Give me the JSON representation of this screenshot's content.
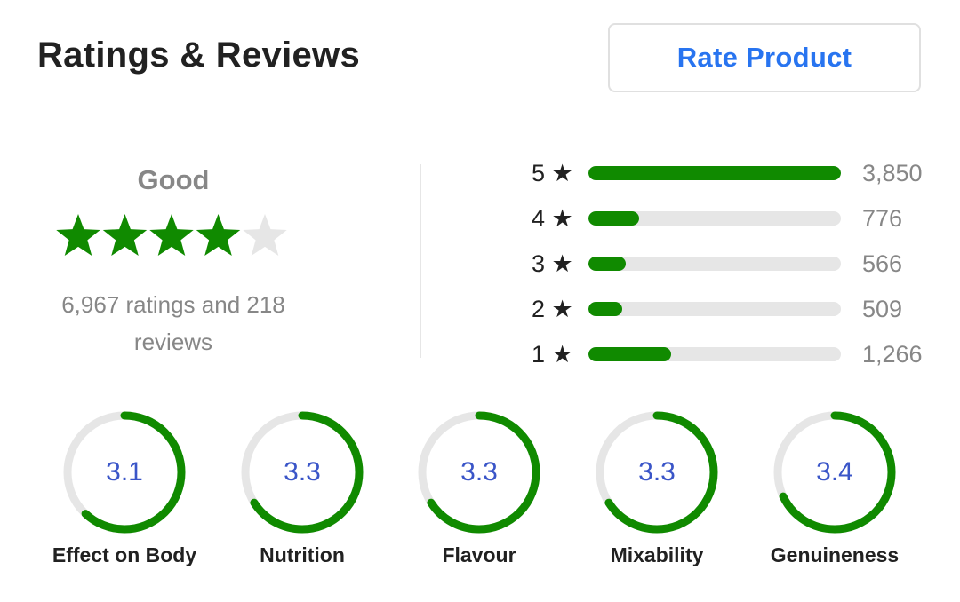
{
  "header": {
    "title": "Ratings & Reviews",
    "rate_button": "Rate Product"
  },
  "overall": {
    "label": "Good",
    "stars_filled": 4,
    "stars_total": 5,
    "summary_line1": "6,967 ratings and 218",
    "summary_line2": "reviews",
    "star_icon": "star-icon",
    "filled_color": "#108a00",
    "empty_color": "#e6e6e6"
  },
  "distribution": [
    {
      "label": "5 ★",
      "count": "3,850",
      "value": 3850
    },
    {
      "label": "4 ★",
      "count": "776",
      "value": 776
    },
    {
      "label": "3 ★",
      "count": "566",
      "value": 566
    },
    {
      "label": "2 ★",
      "count": "509",
      "value": 509
    },
    {
      "label": "1 ★",
      "count": "1,266",
      "value": 1266
    }
  ],
  "aspects": [
    {
      "name": "Effect on Body",
      "value": "3.1",
      "score": 3.1
    },
    {
      "name": "Nutrition",
      "value": "3.3",
      "score": 3.3
    },
    {
      "name": "Flavour",
      "value": "3.3",
      "score": 3.3
    },
    {
      "name": "Mixability",
      "value": "3.3",
      "score": 3.3
    },
    {
      "name": "Genuineness",
      "value": "3.4",
      "score": 3.4
    }
  ],
  "aspect_max": 5,
  "colors": {
    "accent_blue": "#2874f0",
    "rating_green": "#108a00",
    "track_gray": "#e6e6e6",
    "score_blue": "#3a55c8"
  }
}
